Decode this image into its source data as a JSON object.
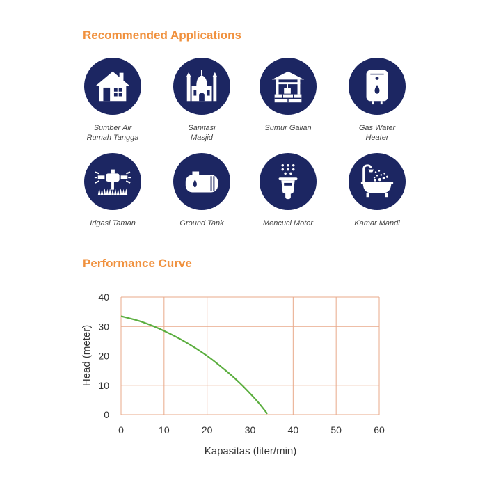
{
  "sections": {
    "applications_title": "Recommended Applications",
    "performance_title": "Performance Curve"
  },
  "applications": [
    {
      "icon": "house-icon",
      "label_lines": [
        "Sumber Air",
        "Rumah Tangga"
      ]
    },
    {
      "icon": "mosque-icon",
      "label_lines": [
        "Sanitasi",
        "Masjid"
      ]
    },
    {
      "icon": "well-icon",
      "label_lines": [
        "Sumur Galian"
      ]
    },
    {
      "icon": "water-heater-icon",
      "label_lines": [
        "Gas Water",
        "Heater"
      ]
    },
    {
      "icon": "sprinkler-icon",
      "label_lines": [
        "Irigasi Taman"
      ]
    },
    {
      "icon": "ground-tank-icon",
      "label_lines": [
        "Ground Tank"
      ]
    },
    {
      "icon": "scooter-wash-icon",
      "label_lines": [
        "Mencuci Motor"
      ]
    },
    {
      "icon": "bathtub-icon",
      "label_lines": [
        "Kamar Mandi"
      ]
    }
  ],
  "colors": {
    "accent": "#F0913E",
    "icon_bg": "#1C2662",
    "grid": "#E8A98A",
    "curve": "#5BAE3F"
  },
  "chart_data": {
    "type": "line",
    "xlabel": "Kapasitas (liter/min)",
    "ylabel": "Head (meter)",
    "xlim": [
      0,
      60
    ],
    "ylim": [
      0,
      40
    ],
    "xticks": [
      0,
      10,
      20,
      30,
      40,
      50,
      60
    ],
    "yticks": [
      0,
      10,
      20,
      30,
      40
    ],
    "grid": true,
    "series": [
      {
        "x": [
          0,
          5,
          10,
          15,
          20,
          25,
          28,
          30,
          32,
          34
        ],
        "y": [
          33.5,
          31.5,
          28.5,
          24.7,
          20,
          14.2,
          10.2,
          7.2,
          4,
          0.3
        ]
      }
    ]
  }
}
